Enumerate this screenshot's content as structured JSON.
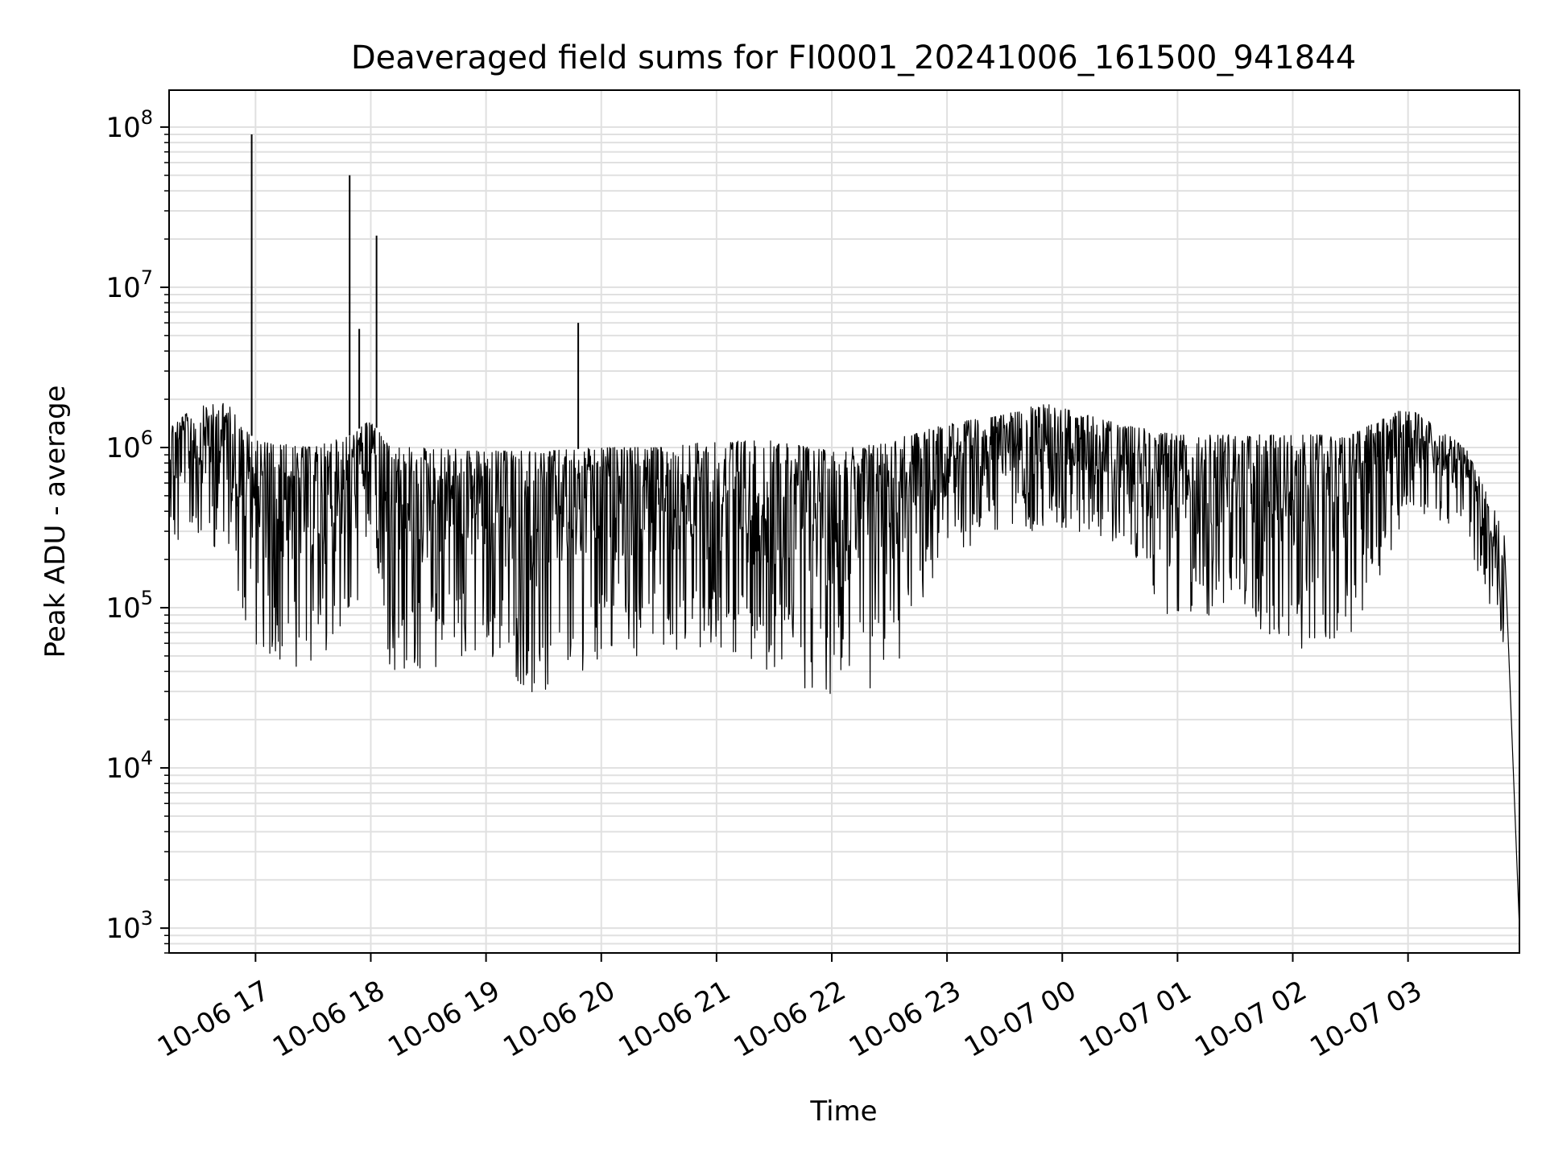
{
  "chart_data": {
    "type": "line",
    "title": "Deaveraged field sums for FI0001_20241006_161500_941844",
    "xlabel": "Time",
    "ylabel": "Peak ADU - average",
    "yscale": "log",
    "ylim": [
      700,
      170000000
    ],
    "xlim": [
      "2024-10-06 16:15",
      "2024-10-07 03:58"
    ],
    "grid": true,
    "x_ticks": [
      {
        "value": "2024-10-06 17:00",
        "label": "10-06 17"
      },
      {
        "value": "2024-10-06 18:00",
        "label": "10-06 18"
      },
      {
        "value": "2024-10-06 19:00",
        "label": "10-06 19"
      },
      {
        "value": "2024-10-06 20:00",
        "label": "10-06 20"
      },
      {
        "value": "2024-10-06 21:00",
        "label": "10-06 21"
      },
      {
        "value": "2024-10-06 22:00",
        "label": "10-06 22"
      },
      {
        "value": "2024-10-06 23:00",
        "label": "10-06 23"
      },
      {
        "value": "2024-10-07 00:00",
        "label": "10-07 00"
      },
      {
        "value": "2024-10-07 01:00",
        "label": "10-07 01"
      },
      {
        "value": "2024-10-07 02:00",
        "label": "10-07 02"
      },
      {
        "value": "2024-10-07 03:00",
        "label": "10-07 03"
      }
    ],
    "y_ticks": [
      {
        "value": 1000,
        "base": "10",
        "exp": "3"
      },
      {
        "value": 10000,
        "base": "10",
        "exp": "4"
      },
      {
        "value": 100000,
        "base": "10",
        "exp": "5"
      },
      {
        "value": 1000000,
        "base": "10",
        "exp": "6"
      },
      {
        "value": 10000000,
        "base": "10",
        "exp": "7"
      },
      {
        "value": 100000000,
        "base": "10",
        "exp": "8"
      }
    ],
    "envelope": [
      {
        "x": "2024-10-06 16:15",
        "high": 1400000,
        "low": 200000
      },
      {
        "x": "2024-10-06 16:30",
        "high": 1800000,
        "low": 250000
      },
      {
        "x": "2024-10-06 16:45",
        "high": 1900000,
        "low": 200000
      },
      {
        "x": "2024-10-06 17:00",
        "high": 1100000,
        "low": 50000
      },
      {
        "x": "2024-10-06 17:30",
        "high": 1000000,
        "low": 40000
      },
      {
        "x": "2024-10-06 17:50",
        "high": 1200000,
        "low": 60000
      },
      {
        "x": "2024-10-06 18:00",
        "high": 1500000,
        "low": 300000
      },
      {
        "x": "2024-10-06 18:10",
        "high": 1000000,
        "low": 40000
      },
      {
        "x": "2024-10-06 18:30",
        "high": 1000000,
        "low": 40000
      },
      {
        "x": "2024-10-06 19:00",
        "high": 950000,
        "low": 50000
      },
      {
        "x": "2024-10-06 19:30",
        "high": 950000,
        "low": 25000
      },
      {
        "x": "2024-10-06 20:00",
        "high": 1000000,
        "low": 50000
      },
      {
        "x": "2024-10-06 20:30",
        "high": 1000000,
        "low": 50000
      },
      {
        "x": "2024-10-06 21:00",
        "high": 1100000,
        "low": 50000
      },
      {
        "x": "2024-10-06 21:30",
        "high": 1100000,
        "low": 40000
      },
      {
        "x": "2024-10-06 22:00",
        "high": 950000,
        "low": 25000
      },
      {
        "x": "2024-10-06 22:30",
        "high": 1100000,
        "low": 30000
      },
      {
        "x": "2024-10-06 23:00",
        "high": 1400000,
        "low": 200000
      },
      {
        "x": "2024-10-06 23:30",
        "high": 1600000,
        "low": 300000
      },
      {
        "x": "2024-10-06 23:50",
        "high": 1900000,
        "low": 300000
      },
      {
        "x": "2024-10-07 00:30",
        "high": 1400000,
        "low": 250000
      },
      {
        "x": "2024-10-07 01:00",
        "high": 1200000,
        "low": 70000
      },
      {
        "x": "2024-10-07 01:30",
        "high": 1200000,
        "low": 100000
      },
      {
        "x": "2024-10-07 02:00",
        "high": 1200000,
        "low": 50000
      },
      {
        "x": "2024-10-07 02:30",
        "high": 1200000,
        "low": 60000
      },
      {
        "x": "2024-10-07 03:00",
        "high": 1800000,
        "low": 400000
      },
      {
        "x": "2024-10-07 03:30",
        "high": 1000000,
        "low": 300000
      },
      {
        "x": "2024-10-07 03:50",
        "high": 300000,
        "low": 50000
      },
      {
        "x": "2024-10-07 03:58",
        "high": 1000,
        "low": 700
      }
    ],
    "spikes": [
      {
        "x": "2024-10-06 16:58",
        "y": 90000000
      },
      {
        "x": "2024-10-06 17:49",
        "y": 50000000
      },
      {
        "x": "2024-10-06 17:54",
        "y": 5500000
      },
      {
        "x": "2024-10-06 18:03",
        "y": 21000000
      },
      {
        "x": "2024-10-06 19:48",
        "y": 6000000
      }
    ],
    "line_color": "#000000",
    "grid_color": "#e0e0e0"
  }
}
